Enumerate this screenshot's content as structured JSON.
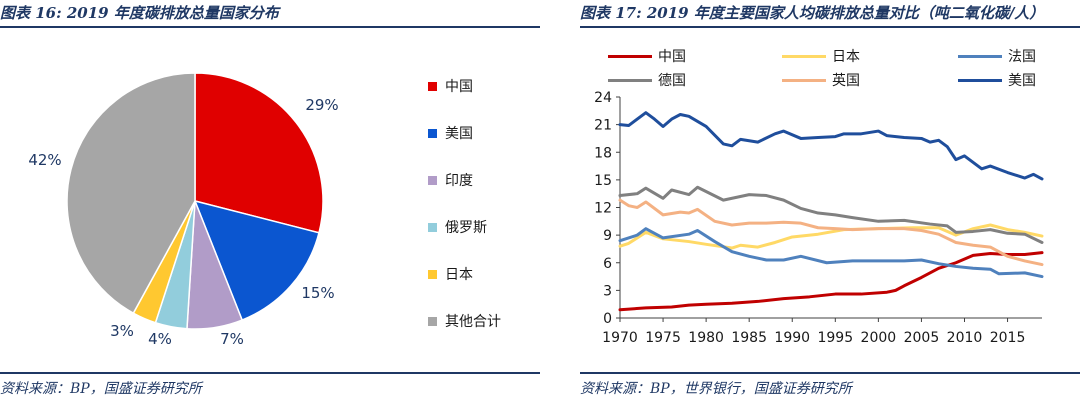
{
  "left": {
    "title": "图表 16:  2019 年度碳排放总量国家分布",
    "source": "资料来源：BP，国盛证券研究所"
  },
  "right": {
    "title": "图表 17:  2019 年度主要国家人均碳排放总量对比（吨二氧化碳/人）",
    "source": "资料来源：BP，世界银行，国盛证券研究所"
  },
  "chart_data": [
    {
      "type": "pie",
      "title": "",
      "legend_placement": "right",
      "slices": [
        {
          "name": "中国",
          "value": 29,
          "label": "29%",
          "color": "#e00000"
        },
        {
          "name": "美国",
          "value": 15,
          "label": "15%",
          "color": "#0b56d0"
        },
        {
          "name": "印度",
          "value": 7,
          "label": "7%",
          "color": "#b19cc8"
        },
        {
          "name": "俄罗斯",
          "value": 4,
          "label": "4%",
          "color": "#92cddc"
        },
        {
          "name": "日本",
          "value": 3,
          "label": "3%",
          "color": "#ffc830"
        },
        {
          "name": "其他合计",
          "value": 42,
          "label": "42%",
          "color": "#a6a6a6"
        }
      ]
    },
    {
      "type": "line",
      "title": "",
      "xlabel": "",
      "ylabel": "",
      "xlim": [
        1970,
        2019
      ],
      "ylim": [
        0,
        24
      ],
      "x_ticks": [
        "1970",
        "1975",
        "1980",
        "1985",
        "1990",
        "1995",
        "2000",
        "2005",
        "2010",
        "2015"
      ],
      "y_ticks": [
        "0",
        "3",
        "6",
        "9",
        "12",
        "15",
        "18",
        "21",
        "24"
      ],
      "grid": false,
      "legend_placement": "top",
      "series": [
        {
          "name": "中国",
          "color": "#c00000",
          "points": [
            [
              1970,
              0.9
            ],
            [
              1973,
              1.1
            ],
            [
              1976,
              1.2
            ],
            [
              1978,
              1.4
            ],
            [
              1980,
              1.5
            ],
            [
              1983,
              1.6
            ],
            [
              1986,
              1.8
            ],
            [
              1989,
              2.1
            ],
            [
              1992,
              2.3
            ],
            [
              1995,
              2.6
            ],
            [
              1998,
              2.6
            ],
            [
              2001,
              2.8
            ],
            [
              2002,
              3.0
            ],
            [
              2003,
              3.5
            ],
            [
              2005,
              4.4
            ],
            [
              2007,
              5.4
            ],
            [
              2009,
              6.0
            ],
            [
              2011,
              6.8
            ],
            [
              2013,
              7.0
            ],
            [
              2015,
              6.9
            ],
            [
              2017,
              6.9
            ],
            [
              2019,
              7.1
            ]
          ]
        },
        {
          "name": "日本",
          "color": "#ffd966",
          "points": [
            [
              1970,
              7.8
            ],
            [
              1971,
              8.1
            ],
            [
              1973,
              9.3
            ],
            [
              1975,
              8.6
            ],
            [
              1978,
              8.3
            ],
            [
              1980,
              8.0
            ],
            [
              1983,
              7.6
            ],
            [
              1984,
              7.9
            ],
            [
              1986,
              7.7
            ],
            [
              1988,
              8.2
            ],
            [
              1990,
              8.8
            ],
            [
              1993,
              9.1
            ],
            [
              1996,
              9.6
            ],
            [
              2000,
              9.7
            ],
            [
              2004,
              9.8
            ],
            [
              2007,
              9.8
            ],
            [
              2009,
              9.0
            ],
            [
              2011,
              9.7
            ],
            [
              2013,
              10.1
            ],
            [
              2015,
              9.6
            ],
            [
              2017,
              9.3
            ],
            [
              2019,
              8.9
            ]
          ]
        },
        {
          "name": "法国",
          "color": "#4f81bd",
          "points": [
            [
              1970,
              8.4
            ],
            [
              1972,
              9.0
            ],
            [
              1973,
              9.7
            ],
            [
              1975,
              8.7
            ],
            [
              1978,
              9.1
            ],
            [
              1979,
              9.5
            ],
            [
              1981,
              8.3
            ],
            [
              1983,
              7.2
            ],
            [
              1985,
              6.7
            ],
            [
              1987,
              6.3
            ],
            [
              1989,
              6.3
            ],
            [
              1991,
              6.7
            ],
            [
              1994,
              6.0
            ],
            [
              1997,
              6.2
            ],
            [
              2000,
              6.2
            ],
            [
              2003,
              6.2
            ],
            [
              2005,
              6.3
            ],
            [
              2007,
              5.9
            ],
            [
              2009,
              5.6
            ],
            [
              2011,
              5.4
            ],
            [
              2013,
              5.3
            ],
            [
              2014,
              4.8
            ],
            [
              2017,
              4.9
            ],
            [
              2019,
              4.5
            ]
          ]
        },
        {
          "name": "德国",
          "color": "#808080",
          "points": [
            [
              1970,
              13.3
            ],
            [
              1972,
              13.5
            ],
            [
              1973,
              14.1
            ],
            [
              1975,
              13.0
            ],
            [
              1976,
              13.9
            ],
            [
              1978,
              13.4
            ],
            [
              1979,
              14.2
            ],
            [
              1982,
              12.8
            ],
            [
              1985,
              13.4
            ],
            [
              1987,
              13.3
            ],
            [
              1989,
              12.8
            ],
            [
              1991,
              11.9
            ],
            [
              1993,
              11.4
            ],
            [
              1995,
              11.2
            ],
            [
              1997,
              10.9
            ],
            [
              2000,
              10.5
            ],
            [
              2003,
              10.6
            ],
            [
              2006,
              10.2
            ],
            [
              2008,
              10.0
            ],
            [
              2009,
              9.3
            ],
            [
              2011,
              9.4
            ],
            [
              2013,
              9.6
            ],
            [
              2015,
              9.2
            ],
            [
              2017,
              9.1
            ],
            [
              2019,
              8.2
            ]
          ]
        },
        {
          "name": "英国",
          "color": "#f4b183",
          "points": [
            [
              1970,
              12.8
            ],
            [
              1971,
              12.2
            ],
            [
              1972,
              12.0
            ],
            [
              1973,
              12.6
            ],
            [
              1975,
              11.2
            ],
            [
              1977,
              11.5
            ],
            [
              1978,
              11.4
            ],
            [
              1979,
              11.8
            ],
            [
              1981,
              10.5
            ],
            [
              1983,
              10.1
            ],
            [
              1985,
              10.3
            ],
            [
              1987,
              10.3
            ],
            [
              1989,
              10.4
            ],
            [
              1991,
              10.3
            ],
            [
              1993,
              9.8
            ],
            [
              1995,
              9.7
            ],
            [
              1997,
              9.6
            ],
            [
              2000,
              9.7
            ],
            [
              2003,
              9.7
            ],
            [
              2005,
              9.5
            ],
            [
              2007,
              9.1
            ],
            [
              2009,
              8.2
            ],
            [
              2011,
              7.9
            ],
            [
              2013,
              7.7
            ],
            [
              2015,
              6.7
            ],
            [
              2017,
              6.2
            ],
            [
              2019,
              5.8
            ]
          ]
        },
        {
          "name": "美国",
          "color": "#1f4e9c",
          "points": [
            [
              1970,
              21.0
            ],
            [
              1971,
              20.9
            ],
            [
              1973,
              22.3
            ],
            [
              1974,
              21.6
            ],
            [
              1975,
              20.8
            ],
            [
              1976,
              21.6
            ],
            [
              1977,
              22.1
            ],
            [
              1978,
              21.9
            ],
            [
              1980,
              20.8
            ],
            [
              1982,
              18.9
            ],
            [
              1983,
              18.7
            ],
            [
              1984,
              19.4
            ],
            [
              1986,
              19.1
            ],
            [
              1988,
              20.0
            ],
            [
              1989,
              20.3
            ],
            [
              1991,
              19.5
            ],
            [
              1993,
              19.6
            ],
            [
              1995,
              19.7
            ],
            [
              1996,
              20.0
            ],
            [
              1998,
              20.0
            ],
            [
              2000,
              20.3
            ],
            [
              2001,
              19.8
            ],
            [
              2003,
              19.6
            ],
            [
              2005,
              19.5
            ],
            [
              2006,
              19.1
            ],
            [
              2007,
              19.3
            ],
            [
              2008,
              18.6
            ],
            [
              2009,
              17.2
            ],
            [
              2010,
              17.6
            ],
            [
              2012,
              16.2
            ],
            [
              2013,
              16.5
            ],
            [
              2015,
              15.8
            ],
            [
              2017,
              15.2
            ],
            [
              2018,
              15.6
            ],
            [
              2019,
              15.1
            ]
          ]
        }
      ]
    }
  ]
}
